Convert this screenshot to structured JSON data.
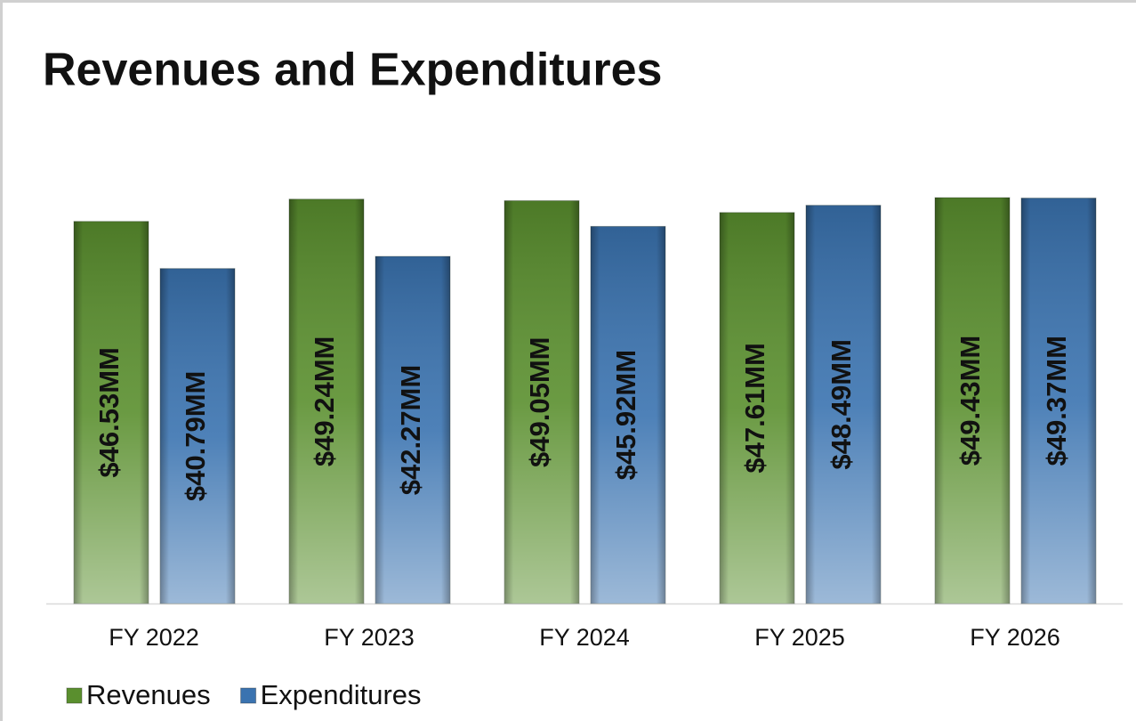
{
  "chart_data": {
    "type": "bar",
    "title": "Revenues and Expenditures",
    "categories": [
      "FY 2022",
      "FY 2023",
      "FY 2024",
      "FY 2025",
      "FY 2026"
    ],
    "series": [
      {
        "name": "Revenues",
        "color": "#5a8f2e",
        "values": [
          46.53,
          49.24,
          49.05,
          47.61,
          49.43
        ],
        "value_labels": [
          "$46.53MM",
          "$49.24MM",
          "$49.05MM",
          "$47.61MM",
          "$49.43MM"
        ]
      },
      {
        "name": "Expenditures",
        "color": "#3a73b0",
        "values": [
          40.79,
          42.27,
          45.92,
          48.49,
          49.37
        ],
        "value_labels": [
          "$40.79MM",
          "$42.27MM",
          "$45.92MM",
          "$48.49MM",
          "$49.37MM"
        ]
      }
    ],
    "legend": "bottom-left"
  }
}
